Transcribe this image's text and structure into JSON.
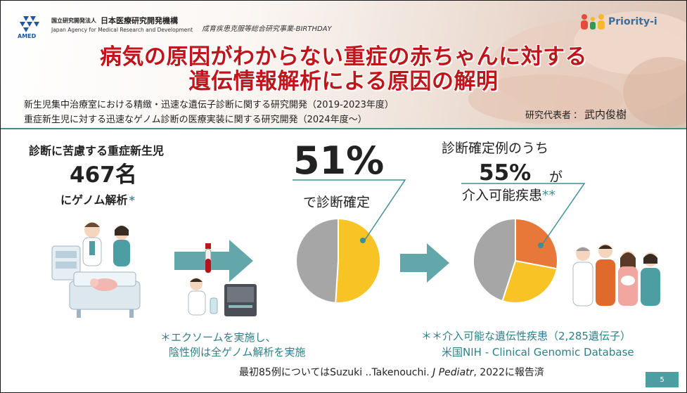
{
  "header": {
    "org_type_jp": "国立研究開発法人",
    "org_name_jp": "日本医療研究開発機構",
    "org_name_en": "Japan Agency for Medical Research and Development",
    "amed_label": "AMED",
    "program": "成育疾患克服等総合研究事業-BIRTHDAY",
    "priority_logo_text": "Priority-i",
    "title_line1": "病気の原因がわからない重症の赤ちゃんに対する",
    "title_line2": "遺伝情報解析による原因の解明",
    "subtitle_line1": "新生児集中治療室における精緻・迅速な遺伝子診断に関する研究開発（2019-2023年度）",
    "subtitle_line2": "重症新生児に対する迅速なゲノム診断の医療実装に関する研究開発（2024年度〜）",
    "pi_label": "研究代表者",
    "pi_sep": "：",
    "pi_name": "武内俊樹",
    "title_color": "#c0161b",
    "accent_color": "#3e8e94"
  },
  "left": {
    "lead": "診断に苦慮する重症新生児",
    "count": "467名",
    "genome": "にゲノム解析",
    "genome_mark": "*"
  },
  "middle": {
    "percent": "51%",
    "label": "で診断確定"
  },
  "right": {
    "heading": "診断確定例のうち",
    "percent": "55%",
    "ga": "が",
    "actionable": "介入可能疾患",
    "actionable_mark": "**"
  },
  "notes": {
    "note1_line1": "＊エクソームを実施し、",
    "note1_line2": "陰性例は全ゲノム解析を実施",
    "note2_line1": "＊＊介入可能な遺伝性疾患（2,285遺伝子）",
    "note2_line2": "米国NIH - Clinical Genomic Database",
    "ref_before": "最初85例についてはSuzuki ..Takenouchi. ",
    "ref_journal": "J Pediatr",
    "ref_after": ", 2022に報告済"
  },
  "page_number": "5",
  "chart_data": [
    {
      "type": "pie",
      "title": "",
      "values": [
        51,
        49
      ],
      "colors": [
        "#f7c325",
        "#a6a6a6"
      ],
      "start_angle_deg": 0
    },
    {
      "type": "pie",
      "title": "",
      "values": [
        28,
        27,
        45
      ],
      "colors": [
        "#e8773a",
        "#f7c325",
        "#a6a6a6"
      ],
      "start_angle_deg": 0
    }
  ]
}
